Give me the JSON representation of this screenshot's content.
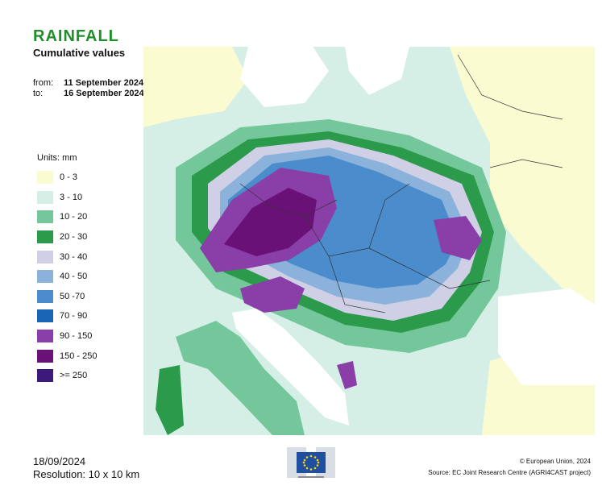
{
  "header": {
    "title": "RAINFALL",
    "subtitle": "Cumulative values",
    "from_label": "from:",
    "from_date": "11 September 2024",
    "to_label": "to:",
    "to_date": "16 September 2024"
  },
  "legend": {
    "units": "Units: mm",
    "items": [
      {
        "label": "0 - 3",
        "color": "#fbfbd2"
      },
      {
        "label": "3 - 10",
        "color": "#d6efe6"
      },
      {
        "label": "10 - 20",
        "color": "#74c79a"
      },
      {
        "label": "20 - 30",
        "color": "#2c9a4b"
      },
      {
        "label": "30 - 40",
        "color": "#cfd0e6"
      },
      {
        "label": "40 - 50",
        "color": "#8bb2db"
      },
      {
        "label": "50 -70",
        "color": "#4a8ccc"
      },
      {
        "label": "70 - 90",
        "color": "#1a64b5"
      },
      {
        "label": "90 - 150",
        "color": "#8a3ea8"
      },
      {
        "label": "150 - 250",
        "color": "#6a1177"
      },
      {
        "label": ">= 250",
        "color": "#3d1a7a"
      }
    ]
  },
  "map": {
    "sea_color": "#ffffff",
    "border_color": "#333333"
  },
  "footer": {
    "date": "18/09/2024",
    "resolution": "Resolution: 10 x 10 km",
    "copyright": "© European Union, 2024",
    "source": "Source: EC Joint Research Centre (AGRI4CAST project)",
    "logo_icon": "eu-flag-icon"
  }
}
